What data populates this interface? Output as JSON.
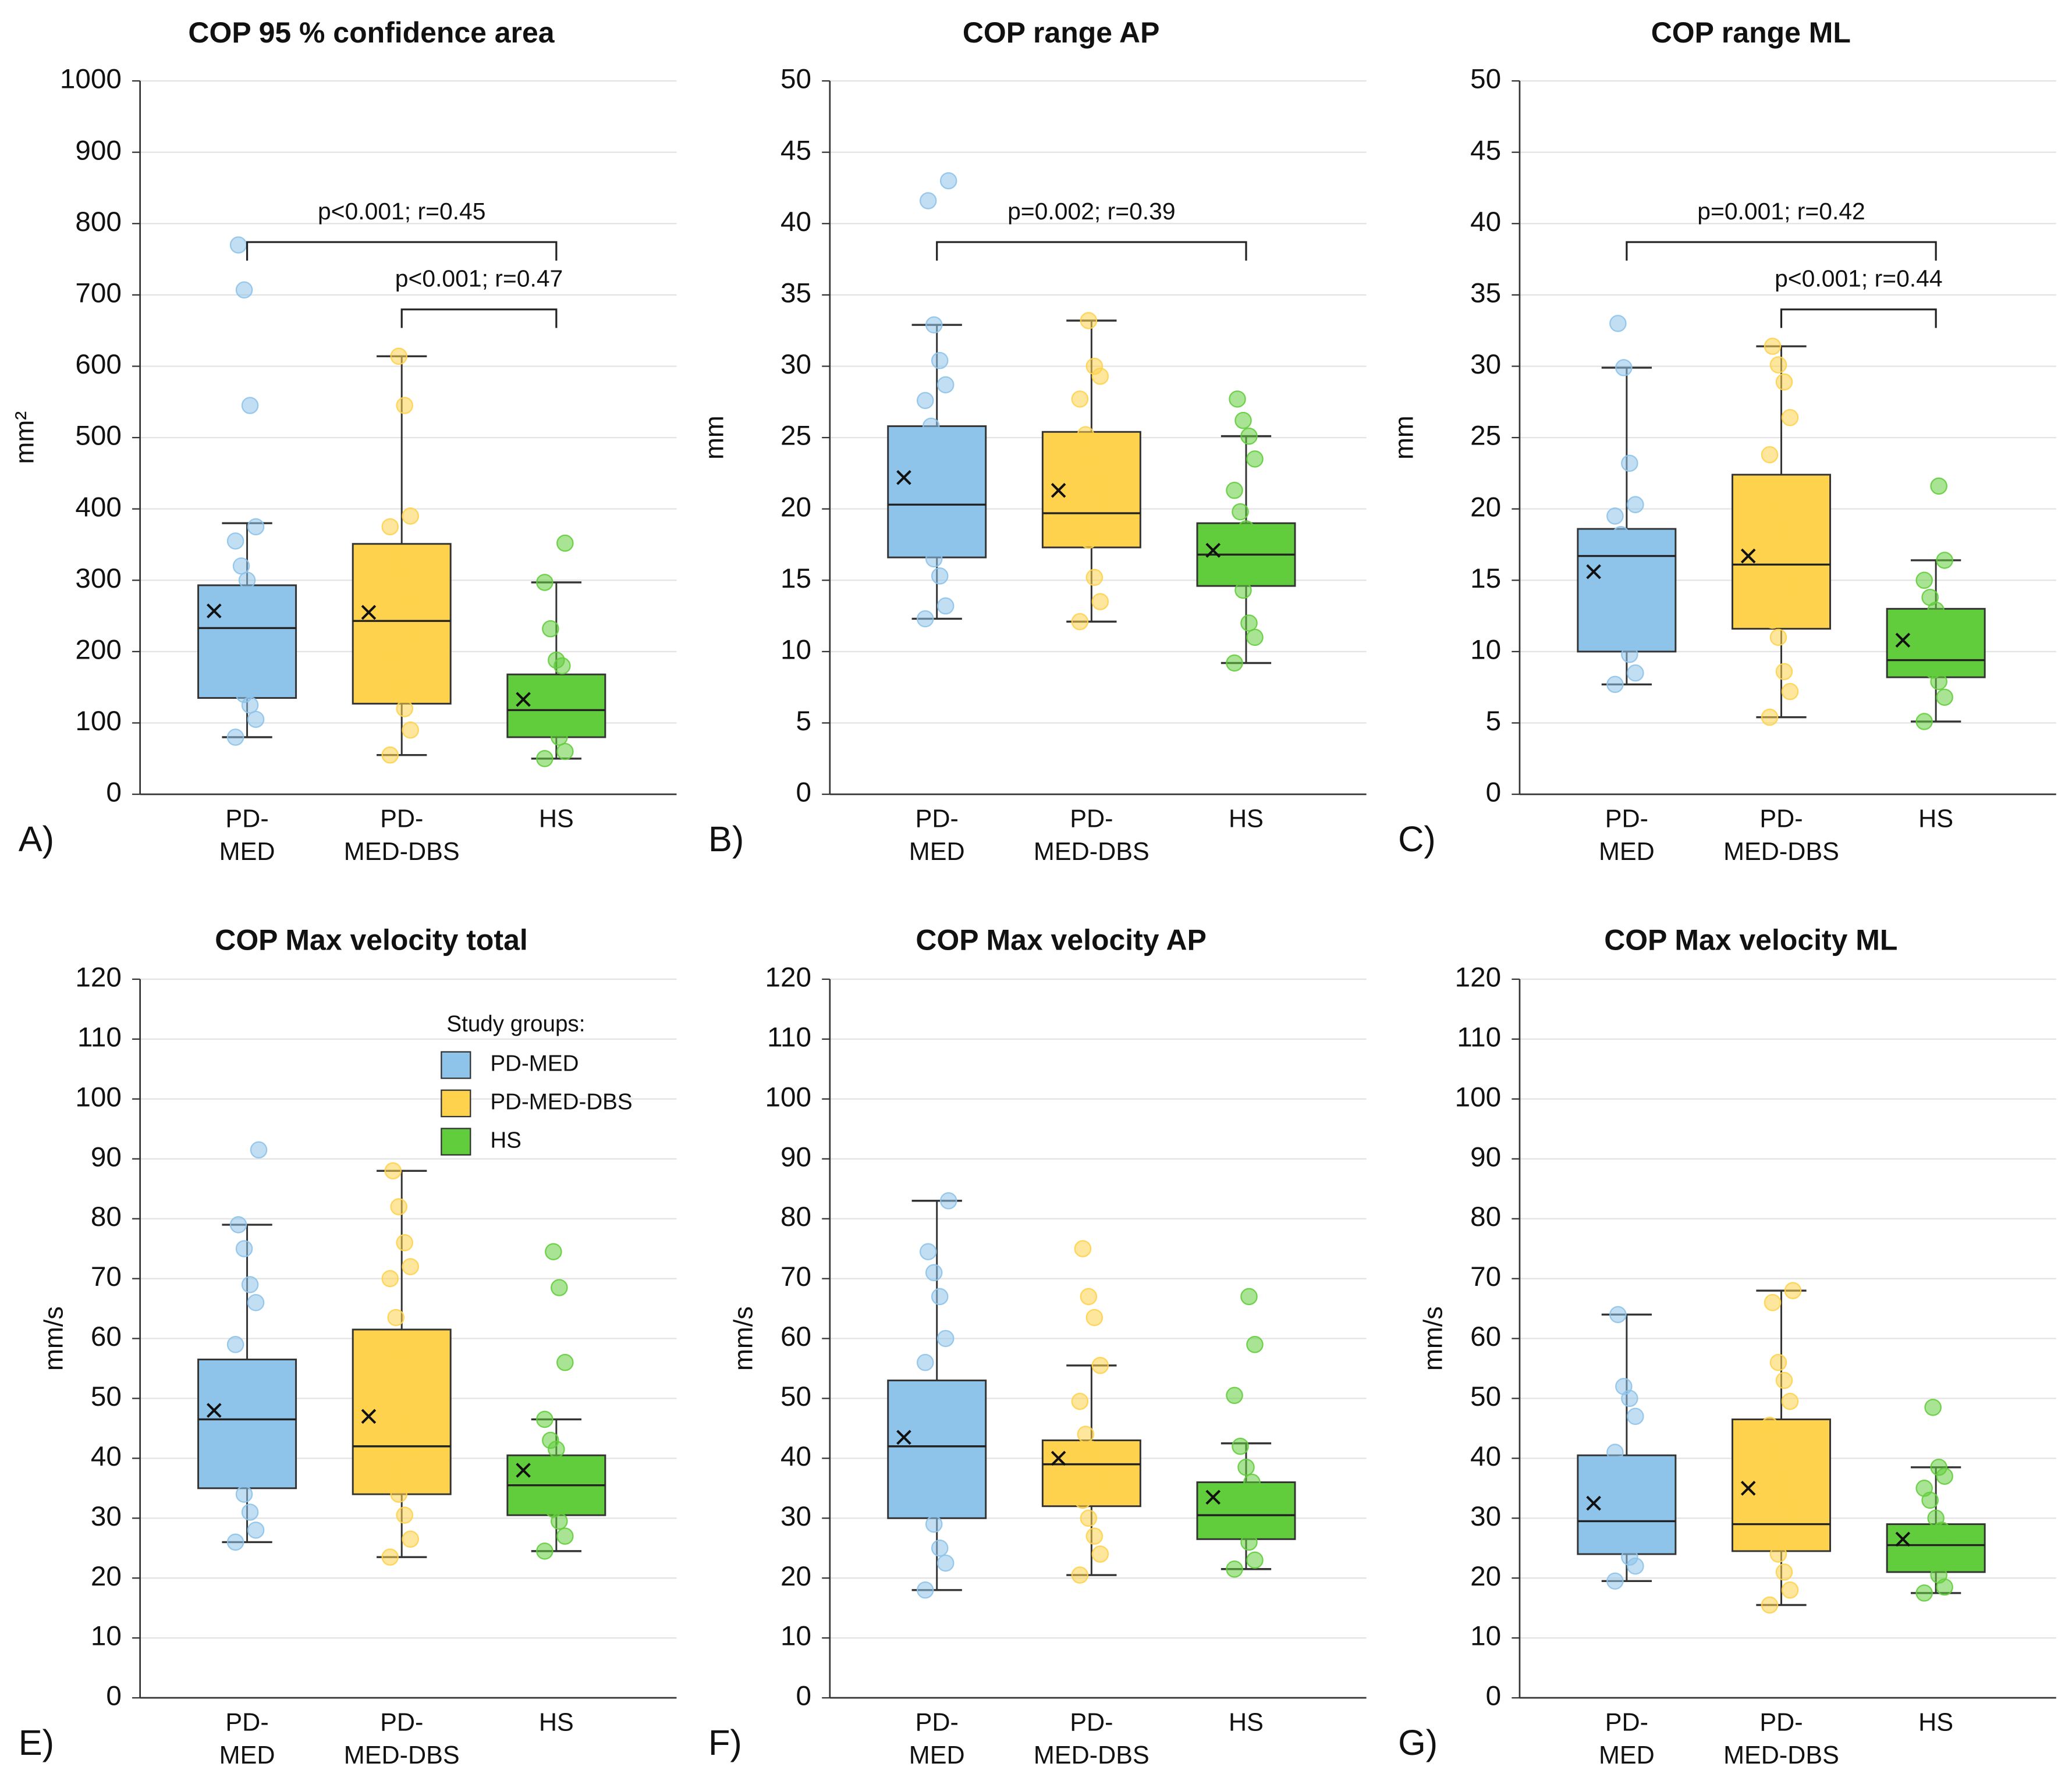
{
  "chart_data": [
    {
      "type": "box",
      "title": "COP 95 % confidence area",
      "panel_label": "A)",
      "y_label": "mm²",
      "categories": [
        "PD-\nMED",
        "PD-\nMED-DBS",
        "HS"
      ],
      "ylim": [
        0,
        1000
      ],
      "yticks": [
        0,
        100,
        200,
        300,
        400,
        500,
        600,
        700,
        800,
        900,
        1000
      ],
      "grid": true,
      "series": [
        {
          "name": "PD-MED",
          "color": "#8ec3ea",
          "min": 80,
          "q1": 135,
          "median": 233,
          "q3": 293,
          "max": 380,
          "mean": 257,
          "points": [
            80,
            105,
            125,
            140,
            200,
            230,
            270,
            300,
            320,
            355,
            375,
            545,
            707,
            770
          ]
        },
        {
          "name": "PD-MED-DBS",
          "color": "#ffd24d",
          "min": 55,
          "q1": 127,
          "median": 243,
          "q3": 351,
          "max": 614,
          "mean": 255,
          "points": [
            55,
            90,
            120,
            150,
            195,
            230,
            270,
            310,
            330,
            375,
            390,
            545,
            614
          ]
        },
        {
          "name": "HS",
          "color": "#62cd3c",
          "min": 50,
          "q1": 80,
          "median": 118,
          "q3": 168,
          "max": 297,
          "mean": 133,
          "points": [
            50,
            60,
            80,
            100,
            120,
            150,
            180,
            188,
            232,
            297,
            352
          ]
        }
      ],
      "annotations": [
        {
          "text": "p<0.001; r=0.45",
          "between": [
            "PD-\nMED",
            "HS"
          ]
        },
        {
          "text": "p<0.001; r=0.47",
          "between": [
            "PD-\nMED-DBS",
            "HS"
          ]
        }
      ]
    },
    {
      "type": "box",
      "title": "COP range AP",
      "panel_label": "B)",
      "y_label": "mm",
      "categories": [
        "PD-\nMED",
        "PD-\nMED-DBS",
        "HS"
      ],
      "ylim": [
        0,
        50
      ],
      "yticks": [
        0,
        5,
        10,
        15,
        20,
        25,
        30,
        35,
        40,
        45,
        50
      ],
      "grid": true,
      "series": [
        {
          "name": "PD-MED",
          "color": "#8ec3ea",
          "min": 12.3,
          "q1": 16.6,
          "median": 20.3,
          "q3": 25.8,
          "max": 32.9,
          "mean": 22.2,
          "points": [
            12.3,
            13.2,
            15.3,
            16.5,
            18.5,
            19.2,
            22.8,
            24.3,
            25.8,
            27.6,
            28.7,
            30.4,
            32.9,
            41.6,
            43
          ]
        },
        {
          "name": "PD-MED-DBS",
          "color": "#ffd24d",
          "min": 12.1,
          "q1": 17.3,
          "median": 19.7,
          "q3": 25.4,
          "max": 33.2,
          "mean": 21.3,
          "points": [
            12.1,
            13.5,
            15.2,
            17.8,
            19.2,
            20.6,
            21.8,
            23.4,
            25.2,
            27.7,
            29.3,
            30,
            33.2
          ]
        },
        {
          "name": "HS",
          "color": "#62cd3c",
          "min": 9.2,
          "q1": 14.6,
          "median": 16.8,
          "q3": 19.0,
          "max": 25.1,
          "mean": 17.1,
          "points": [
            9.2,
            11,
            12,
            14.3,
            15.6,
            16.6,
            17.5,
            18.6,
            19.8,
            21.3,
            23.5,
            25.1,
            26.2,
            27.7
          ]
        }
      ],
      "annotations": [
        {
          "text": "p=0.002; r=0.39",
          "between": [
            "PD-\nMED",
            "HS"
          ]
        }
      ]
    },
    {
      "type": "box",
      "title": "COP range ML",
      "panel_label": "C)",
      "y_label": "mm",
      "categories": [
        "PD-\nMED",
        "PD-\nMED-DBS",
        "HS"
      ],
      "ylim": [
        0,
        50
      ],
      "yticks": [
        0,
        5,
        10,
        15,
        20,
        25,
        30,
        35,
        40,
        45,
        50
      ],
      "grid": true,
      "series": [
        {
          "name": "PD-MED",
          "color": "#8ec3ea",
          "min": 7.7,
          "q1": 10,
          "median": 16.7,
          "q3": 18.6,
          "max": 29.9,
          "mean": 15.6,
          "points": [
            7.7,
            8.5,
            9.8,
            11.2,
            12.6,
            14.5,
            16,
            17,
            18.2,
            19.5,
            20.3,
            23.2,
            29.9,
            33
          ]
        },
        {
          "name": "PD-MED-DBS",
          "color": "#ffd24d",
          "min": 5.4,
          "q1": 11.6,
          "median": 16.1,
          "q3": 22.4,
          "max": 31.4,
          "mean": 16.7,
          "points": [
            5.4,
            7.2,
            8.6,
            11,
            12.2,
            14.6,
            16.2,
            18.6,
            20,
            23.8,
            26.4,
            28.9,
            30.1,
            31.4
          ]
        },
        {
          "name": "HS",
          "color": "#62cd3c",
          "min": 5.1,
          "q1": 8.2,
          "median": 9.4,
          "q3": 13.0,
          "max": 16.4,
          "mean": 10.8,
          "points": [
            5.1,
            6.8,
            7.9,
            8.7,
            9.3,
            10.4,
            11.8,
            12.9,
            13.8,
            15,
            16.4,
            21.6
          ]
        }
      ],
      "annotations": [
        {
          "text": "p=0.001; r=0.42",
          "between": [
            "PD-\nMED",
            "HS"
          ]
        },
        {
          "text": "p<0.001; r=0.44",
          "between": [
            "PD-\nMED-DBS",
            "HS"
          ]
        }
      ]
    },
    {
      "type": "box",
      "title": "COP Max velocity total",
      "panel_label": "E)",
      "y_label": "mm/s",
      "categories": [
        "PD-\nMED",
        "PD-\nMED-DBS",
        "HS"
      ],
      "ylim": [
        0,
        120
      ],
      "yticks": [
        0,
        10,
        20,
        30,
        40,
        50,
        60,
        70,
        80,
        90,
        100,
        110,
        120
      ],
      "grid": true,
      "legend": true,
      "legend_title": "Study groups:",
      "series": [
        {
          "name": "PD-MED",
          "color": "#8ec3ea",
          "min": 26,
          "q1": 35,
          "median": 46.5,
          "q3": 56.5,
          "max": 79,
          "mean": 48,
          "points": [
            26,
            28,
            31,
            34,
            37,
            41,
            45,
            50,
            54,
            59,
            66,
            69,
            75,
            79,
            91.5
          ]
        },
        {
          "name": "PD-MED-DBS",
          "color": "#ffd24d",
          "min": 23.5,
          "q1": 34,
          "median": 42,
          "q3": 61.5,
          "max": 88,
          "mean": 47,
          "points": [
            23.5,
            26.5,
            30.5,
            34,
            38,
            41.5,
            45.5,
            57.5,
            63.5,
            70,
            72,
            76,
            82,
            88
          ]
        },
        {
          "name": "HS",
          "color": "#62cd3c",
          "min": 24.5,
          "q1": 30.5,
          "median": 35.5,
          "q3": 40.5,
          "max": 46.5,
          "mean": 38,
          "points": [
            24.5,
            27,
            29.5,
            31.5,
            34,
            36.5,
            38.5,
            41.5,
            43,
            46.5,
            56,
            68.5,
            74.5
          ]
        }
      ]
    },
    {
      "type": "box",
      "title": "COP Max velocity AP",
      "panel_label": "F)",
      "y_label": "mm/s",
      "categories": [
        "PD-\nMED",
        "PD-\nMED-DBS",
        "HS"
      ],
      "ylim": [
        0,
        120
      ],
      "yticks": [
        0,
        10,
        20,
        30,
        40,
        50,
        60,
        70,
        80,
        90,
        100,
        110,
        120
      ],
      "grid": true,
      "series": [
        {
          "name": "PD-MED",
          "color": "#8ec3ea",
          "min": 18,
          "q1": 30,
          "median": 42,
          "q3": 53,
          "max": 83,
          "mean": 43.5,
          "points": [
            18,
            22.5,
            25,
            29,
            33,
            38,
            44,
            48,
            51,
            56,
            60,
            67,
            71,
            74.5,
            83
          ]
        },
        {
          "name": "PD-MED-DBS",
          "color": "#ffd24d",
          "min": 20.5,
          "q1": 32,
          "median": 39,
          "q3": 43,
          "max": 55.5,
          "mean": 40,
          "points": [
            20.5,
            24,
            27,
            30,
            33,
            36.5,
            39.5,
            41.5,
            44,
            49.5,
            55.5,
            63.5,
            67,
            75
          ]
        },
        {
          "name": "HS",
          "color": "#62cd3c",
          "min": 21.5,
          "q1": 26.5,
          "median": 30.5,
          "q3": 36,
          "max": 42.5,
          "mean": 33.5,
          "points": [
            21.5,
            23,
            26,
            28.5,
            30.5,
            33,
            36,
            38.5,
            42,
            50.5,
            59,
            67
          ]
        }
      ]
    },
    {
      "type": "box",
      "title": "COP Max velocity ML",
      "panel_label": "G)",
      "y_label": "mm/s",
      "categories": [
        "PD-\nMED",
        "PD-\nMED-DBS",
        "HS"
      ],
      "ylim": [
        0,
        120
      ],
      "yticks": [
        0,
        10,
        20,
        30,
        40,
        50,
        60,
        70,
        80,
        90,
        100,
        110,
        120
      ],
      "grid": true,
      "series": [
        {
          "name": "PD-MED",
          "color": "#8ec3ea",
          "min": 19.5,
          "q1": 24,
          "median": 29.5,
          "q3": 40.5,
          "max": 64,
          "mean": 32.5,
          "points": [
            19.5,
            22,
            23.5,
            26,
            28.5,
            31,
            33,
            35,
            39,
            41,
            47,
            50,
            52,
            64
          ]
        },
        {
          "name": "PD-MED-DBS",
          "color": "#ffd24d",
          "min": 15.5,
          "q1": 24.5,
          "median": 29,
          "q3": 46.5,
          "max": 68,
          "mean": 35,
          "points": [
            15.5,
            18,
            21,
            24,
            27,
            30,
            33,
            36,
            41,
            45.5,
            49.5,
            53,
            56,
            66,
            68
          ]
        },
        {
          "name": "HS",
          "color": "#62cd3c",
          "min": 17.5,
          "q1": 21,
          "median": 25.5,
          "q3": 29,
          "max": 38.5,
          "mean": 26.5,
          "points": [
            17.5,
            18.5,
            20.5,
            22.5,
            24.5,
            26.5,
            28,
            30,
            33,
            35,
            37,
            38.5,
            48.5
          ]
        }
      ]
    }
  ]
}
